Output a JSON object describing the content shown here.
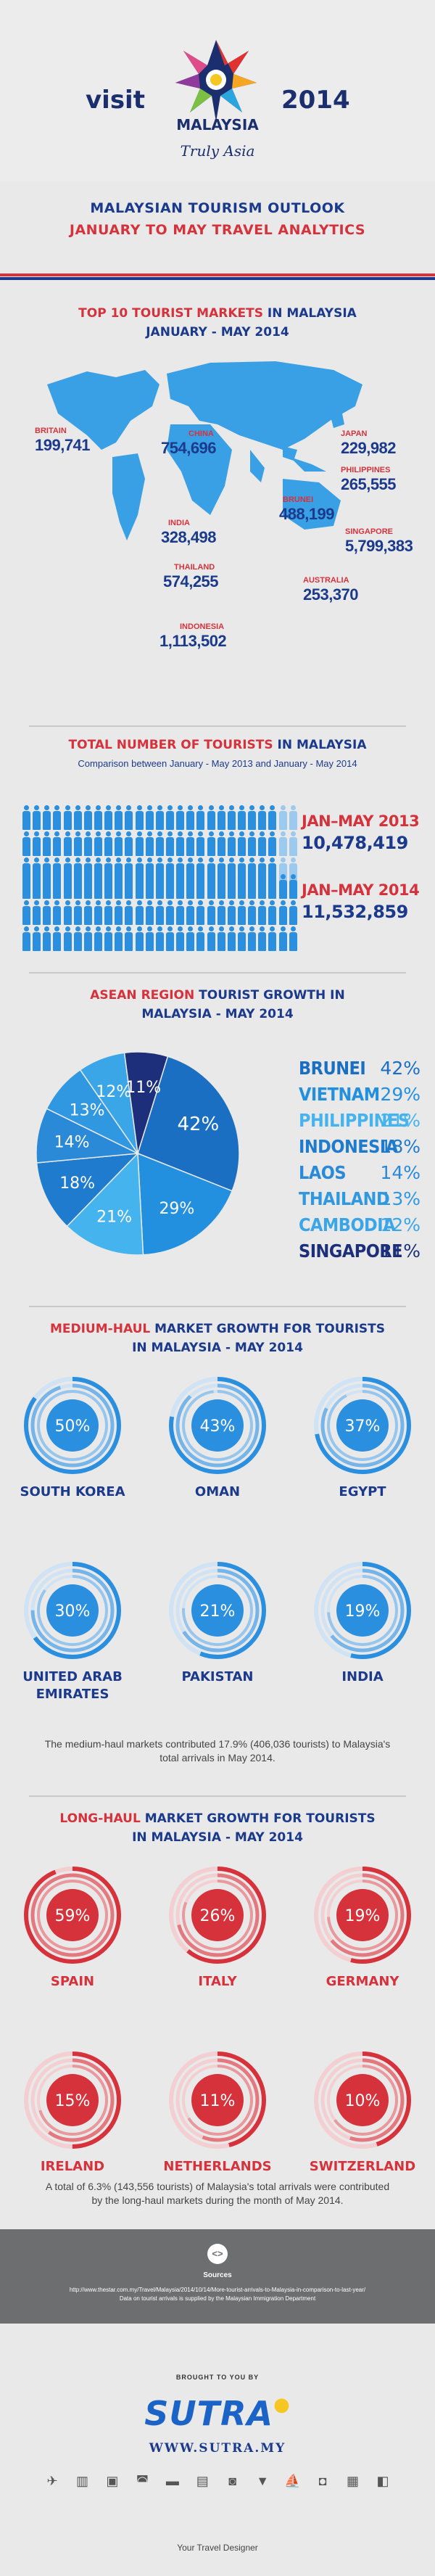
{
  "header": {
    "visit": "visit",
    "year": "2014",
    "brand": "MALAYSIA",
    "tagline": "Truly Asia",
    "title_line1": "MALAYSIAN TOURISM OUTLOOK",
    "title_line2": "JANUARY TO MAY TRAVEL ANALYTICS",
    "colors": {
      "navy": "#1b3a8c",
      "red": "#d6323c",
      "light_blue": "#3aa0e6"
    }
  },
  "top10": {
    "title_a": "TOP 10 TOURIST MARKETS",
    "title_b": " IN MALAYSIA",
    "subtitle": "JANUARY - MAY 2014",
    "markets": [
      {
        "country": "BRITAIN",
        "value": "199,741"
      },
      {
        "country": "CHINA",
        "value": "754,696"
      },
      {
        "country": "JAPAN",
        "value": "229,982"
      },
      {
        "country": "PHILIPPINES",
        "value": "265,555"
      },
      {
        "country": "BRUNEI",
        "value": "488,199"
      },
      {
        "country": "INDIA",
        "value": "328,498"
      },
      {
        "country": "SINGAPORE",
        "value": "5,799,383"
      },
      {
        "country": "THAILAND",
        "value": "574,255"
      },
      {
        "country": "AUSTRALIA",
        "value": "253,370"
      },
      {
        "country": "INDONESIA",
        "value": "1,113,502"
      }
    ]
  },
  "total": {
    "title_a": "TOTAL NUMBER OF TOURISTS",
    "title_b": " IN MALAYSIA",
    "subtitle": "Comparison between January - May 2013 and January - May 2014",
    "rows": [
      {
        "label": "JAN–MAY 2013",
        "value": "10,478,419"
      },
      {
        "label": "JAN–MAY 2014",
        "value": "11,532,859"
      }
    ]
  },
  "asean": {
    "title_a": "ASEAN REGION",
    "title_b": " TOURIST GROWTH IN",
    "title_c": "MALAYSIA - MAY 2014",
    "legend": [
      {
        "name": "BRUNEI",
        "pct": "42%",
        "color": "#1b6fc2"
      },
      {
        "name": "VIETNAM",
        "pct": "29%",
        "color": "#2390df"
      },
      {
        "name": "PHILIPPINES",
        "pct": "21%",
        "color": "#45b4ee"
      },
      {
        "name": "INDONESIA",
        "pct": "18%",
        "color": "#1f7bcd"
      },
      {
        "name": "LAOS",
        "pct": "14%",
        "color": "#2a8ad8"
      },
      {
        "name": "THAILAND",
        "pct": "13%",
        "color": "#2f98e0"
      },
      {
        "name": "CAMBODIA",
        "pct": "12%",
        "color": "#3aa6e8"
      },
      {
        "name": "SINGAPORE",
        "pct": "11%",
        "color": "#1d2f7a"
      }
    ]
  },
  "medium": {
    "title_a": "MEDIUM-HAUL",
    "title_b": " MARKET GROWTH  FOR TOURISTS",
    "title_c": "IN MALAYSIA - MAY 2014",
    "items": [
      {
        "country": "SOUTH KOREA",
        "pct": "50%"
      },
      {
        "country": "OMAN",
        "pct": "43%"
      },
      {
        "country": "EGYPT",
        "pct": "37%"
      },
      {
        "country": "UNITED ARAB EMIRATES",
        "pct": "30%"
      },
      {
        "country": "PAKISTAN",
        "pct": "21%"
      },
      {
        "country": "INDIA",
        "pct": "19%"
      }
    ],
    "note": "The medium-haul markets contributed 17.9% (406,036 tourists) to Malaysia's total arrivals in May 2014."
  },
  "long": {
    "title_a": "LONG-HAUL",
    "title_b": " MARKET GROWTH FOR TOURISTS",
    "title_c": "IN MALAYSIA - MAY 2014",
    "items": [
      {
        "country": "SPAIN",
        "pct": "59%"
      },
      {
        "country": "ITALY",
        "pct": "26%"
      },
      {
        "country": "GERMANY",
        "pct": "19%"
      },
      {
        "country": "IRELAND",
        "pct": "15%"
      },
      {
        "country": "NETHERLANDS",
        "pct": "11%"
      },
      {
        "country": "SWITZERLAND",
        "pct": "10%"
      }
    ],
    "note": "A total of 6.3% (143,556 tourists) of Malaysia's total arrivals were contributed by the long-haul markets during the month of May 2014."
  },
  "footer": {
    "sources_title": "Sources",
    "source_url": "http://www.thestar.com.my/Travel/Malaysia/2014/10/14/More-tourist-arrivals-to-Malaysia-in-comparison-to-last-year/",
    "source_note": "Data on tourist arrivals is supplied by the Malaysian Immigration Department",
    "brought": "BROUGHT TO YOU BY",
    "brand": "SUTRA",
    "url": "WWW.SUTRA.MY",
    "tagline": "Your Travel Designer"
  },
  "chart_data": [
    {
      "type": "bar",
      "title": "TOP 10 TOURIST MARKETS IN MALAYSIA JANUARY - MAY 2014",
      "categories": [
        "BRITAIN",
        "CHINA",
        "JAPAN",
        "PHILIPPINES",
        "BRUNEI",
        "INDIA",
        "SINGAPORE",
        "THAILAND",
        "AUSTRALIA",
        "INDONESIA"
      ],
      "values": [
        199741,
        754696,
        229982,
        265555,
        488199,
        328498,
        5799383,
        574255,
        253370,
        1113502
      ]
    },
    {
      "type": "bar",
      "title": "TOTAL NUMBER OF TOURISTS IN MALAYSIA",
      "categories": [
        "JAN–MAY 2013",
        "JAN–MAY 2014"
      ],
      "values": [
        10478419,
        11532859
      ]
    },
    {
      "type": "pie",
      "title": "ASEAN REGION TOURIST GROWTH IN MALAYSIA - MAY 2014",
      "categories": [
        "BRUNEI",
        "VIETNAM",
        "PHILIPPINES",
        "INDONESIA",
        "LAOS",
        "THAILAND",
        "CAMBODIA",
        "SINGAPORE"
      ],
      "values": [
        42,
        29,
        21,
        18,
        14,
        13,
        12,
        11
      ]
    },
    {
      "type": "bar",
      "title": "MEDIUM-HAUL MARKET GROWTH FOR TOURISTS IN MALAYSIA - MAY 2014",
      "categories": [
        "SOUTH KOREA",
        "OMAN",
        "EGYPT",
        "UNITED ARAB EMIRATES",
        "PAKISTAN",
        "INDIA"
      ],
      "values": [
        50,
        43,
        37,
        30,
        21,
        19
      ]
    },
    {
      "type": "bar",
      "title": "LONG-HAUL MARKET GROWTH FOR TOURISTS IN MALAYSIA - MAY 2014",
      "categories": [
        "SPAIN",
        "ITALY",
        "GERMANY",
        "IRELAND",
        "NETHERLANDS",
        "SWITZERLAND"
      ],
      "values": [
        59,
        26,
        19,
        15,
        11,
        10
      ]
    }
  ]
}
